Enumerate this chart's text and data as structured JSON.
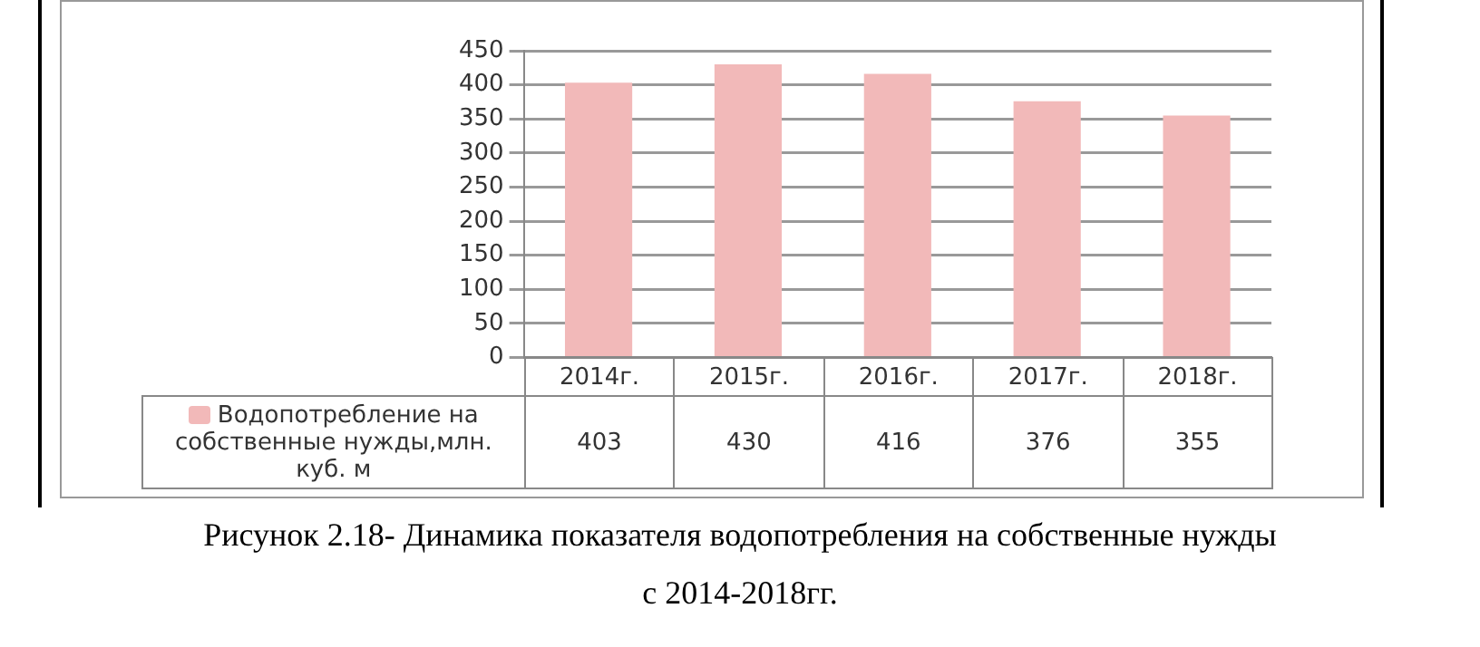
{
  "chart_data": {
    "type": "bar",
    "categories": [
      "2014г.",
      "2015г.",
      "2016г.",
      "2017г.",
      "2018г."
    ],
    "series": [
      {
        "name": "Водопотребление на собственные нужды,млн. куб. м",
        "color": "#f2b9b9",
        "values": [
          403,
          430,
          416,
          376,
          355
        ]
      }
    ],
    "ylim": [
      0,
      450
    ],
    "yticks": [
      0,
      50,
      100,
      150,
      200,
      250,
      300,
      350,
      400,
      450
    ],
    "grid": "y",
    "legend": "left",
    "data_labels": true,
    "annotations": [
      "Рисунок 2.18- Динамика показателя водопотребления на собственные нужды",
      "с 2014-2018гг."
    ]
  }
}
